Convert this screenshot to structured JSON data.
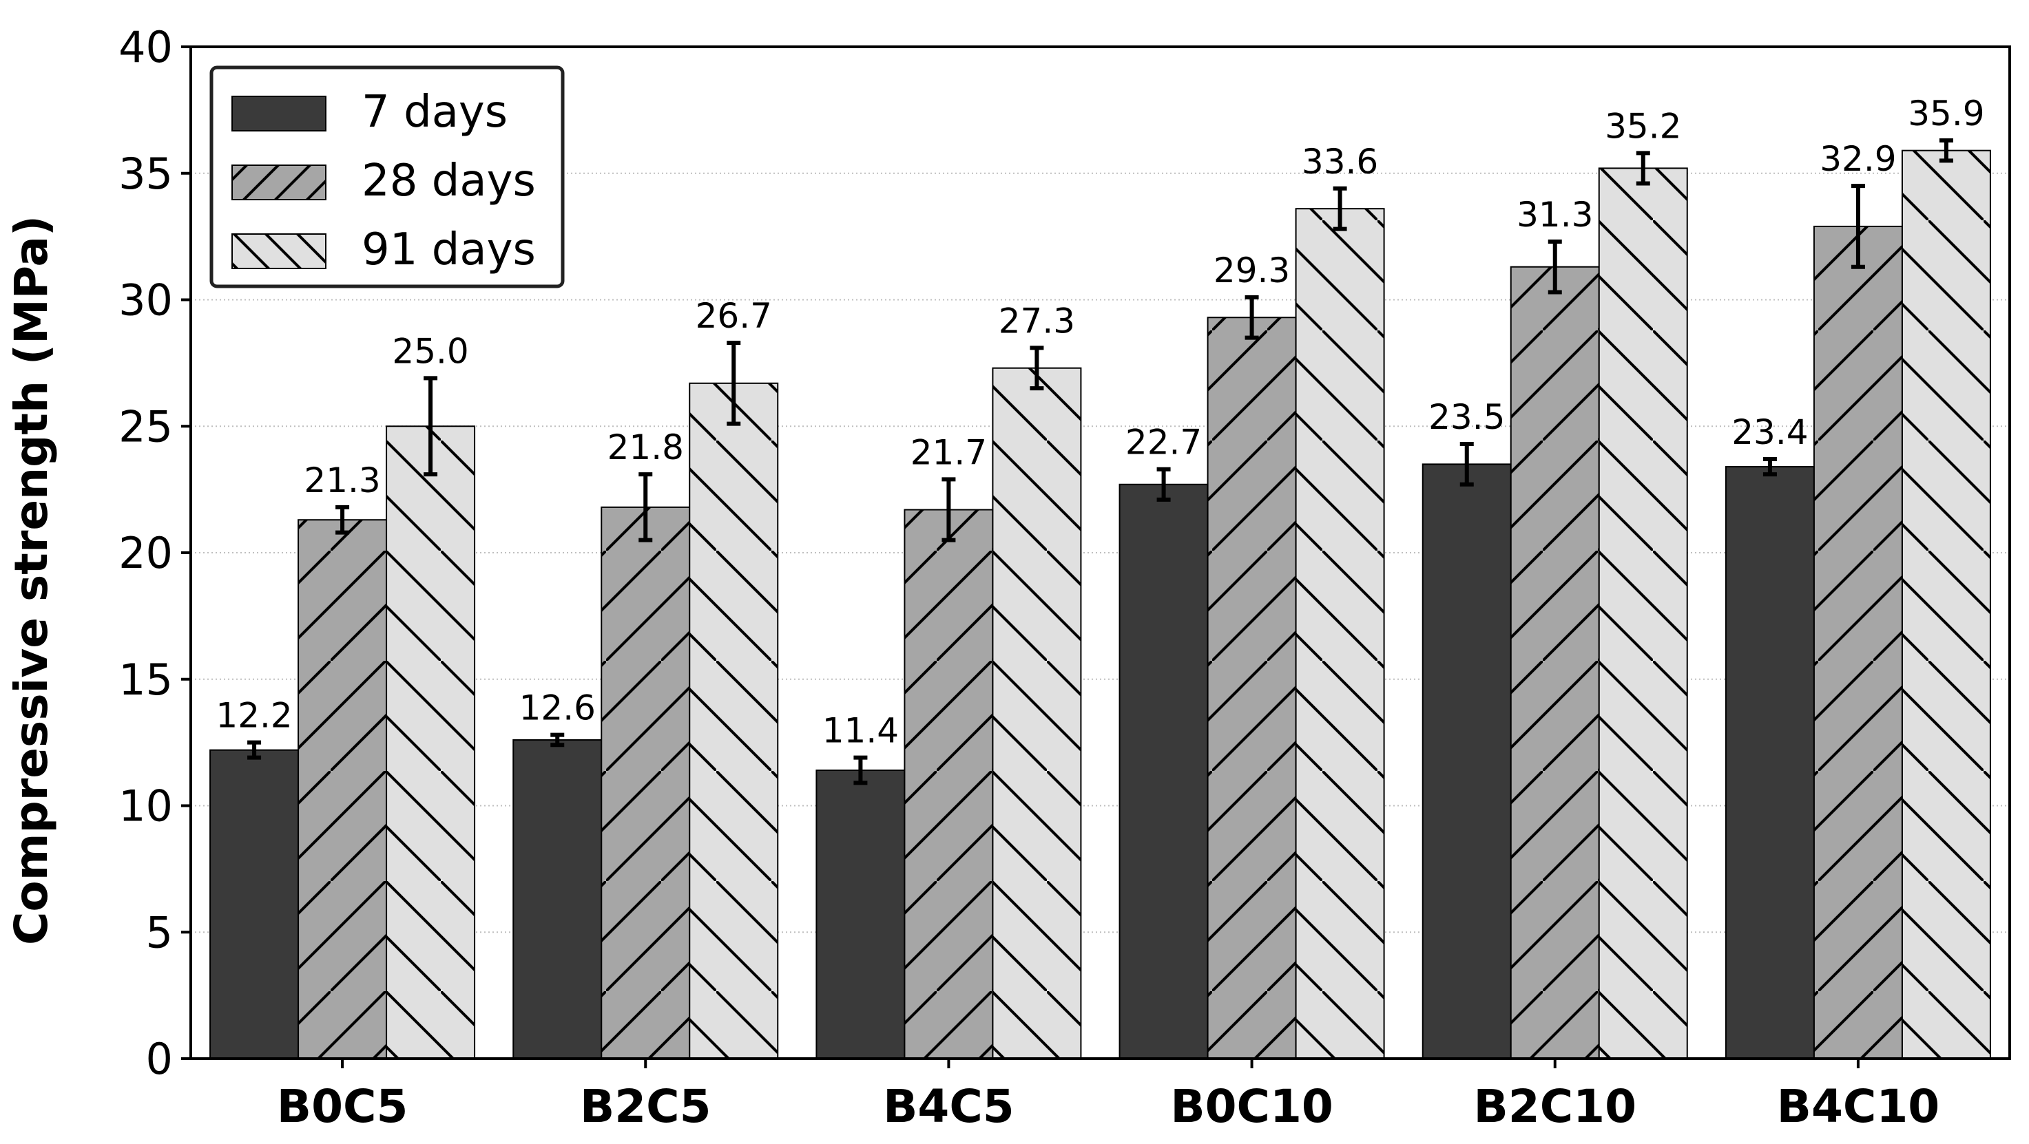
{
  "chart_data": {
    "type": "bar",
    "title": "",
    "xlabel": "",
    "ylabel": "Compressive strength (MPa)",
    "ylim": [
      0,
      40
    ],
    "yticks": [
      0,
      5,
      10,
      15,
      20,
      25,
      30,
      35,
      40
    ],
    "categories": [
      "B0C5",
      "B2C5",
      "B4C5",
      "B0C10",
      "B2C10",
      "B4C10"
    ],
    "grid": "horizontal dotted",
    "legend_position": "top-left",
    "series": [
      {
        "name": "7 days",
        "color": "#3a3a3a",
        "hatch": "none",
        "values": [
          12.2,
          12.6,
          11.4,
          22.7,
          23.5,
          23.4
        ],
        "errors": [
          0.3,
          0.2,
          0.5,
          0.6,
          0.8,
          0.3
        ],
        "labels": [
          "12.2",
          "12.6",
          "11.4",
          "22.7",
          "23.5",
          "23.4"
        ]
      },
      {
        "name": "28 days",
        "color": "#a6a6a6",
        "hatch": "forward",
        "values": [
          21.3,
          21.8,
          21.7,
          29.3,
          31.3,
          32.9
        ],
        "errors": [
          0.5,
          1.3,
          1.2,
          0.8,
          1.0,
          1.6
        ],
        "labels": [
          "21.3",
          "21.8",
          "21.7",
          "29.3",
          "31.3",
          "32.9"
        ]
      },
      {
        "name": "91 days",
        "color": "#e0e0e0",
        "hatch": "backward",
        "values": [
          25.0,
          26.7,
          27.3,
          33.6,
          35.2,
          35.9
        ],
        "errors": [
          1.9,
          1.6,
          0.8,
          0.8,
          0.6,
          0.4
        ],
        "labels": [
          "25.0",
          "26.7",
          "27.3",
          "33.6",
          "35.2",
          "35.9"
        ]
      }
    ]
  }
}
